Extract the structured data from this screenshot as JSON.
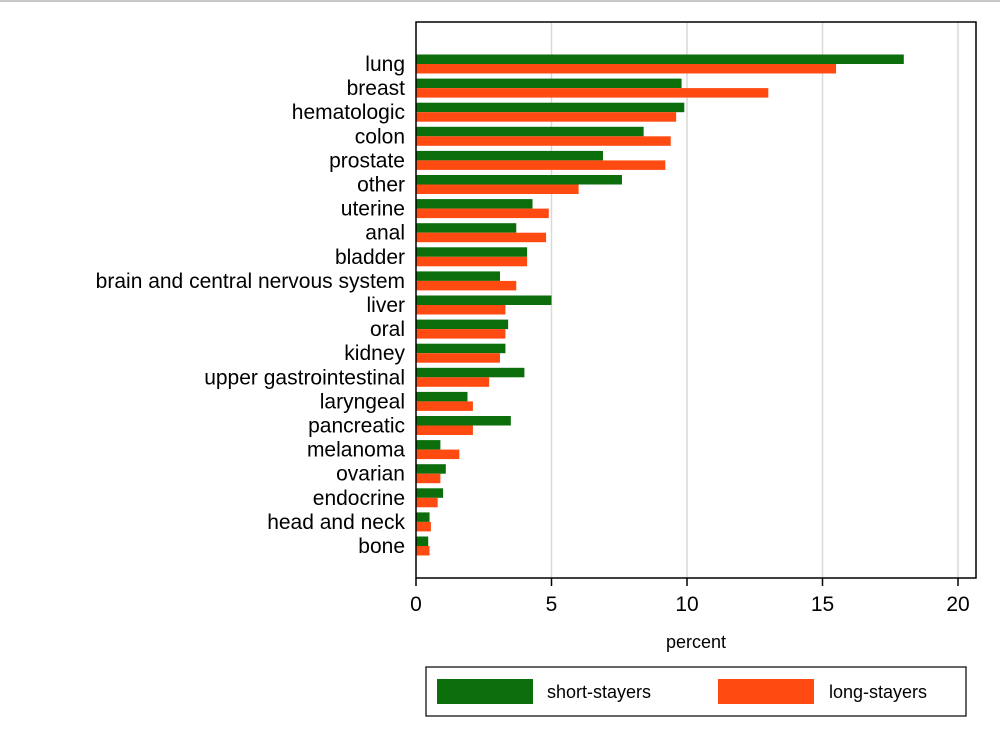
{
  "chart_data": {
    "type": "bar",
    "orientation": "horizontal",
    "categories": [
      "lung",
      "breast",
      "hematologic",
      "colon",
      "prostate",
      "other",
      "uterine",
      "anal",
      "bladder",
      "brain and central nervous system",
      "liver",
      "oral",
      "kidney",
      "upper gastrointestinal",
      "laryngeal",
      "pancreatic",
      "melanoma",
      "ovarian",
      "endocrine",
      "head and neck",
      "bone"
    ],
    "series": [
      {
        "name": "short-stayers",
        "color": "#0b6e0b",
        "values": [
          18.0,
          9.8,
          9.9,
          8.4,
          6.9,
          7.6,
          4.3,
          3.7,
          4.1,
          3.1,
          5.0,
          3.4,
          3.3,
          4.0,
          1.9,
          3.5,
          0.9,
          1.1,
          1.0,
          0.5,
          0.45
        ]
      },
      {
        "name": "long-stayers",
        "color": "#ff4b12",
        "values": [
          15.5,
          13.0,
          9.6,
          9.4,
          9.2,
          6.0,
          4.9,
          4.8,
          4.1,
          3.7,
          3.3,
          3.3,
          3.1,
          2.7,
          2.1,
          2.1,
          1.6,
          0.9,
          0.8,
          0.55,
          0.5
        ]
      }
    ],
    "xlabel": "percent",
    "ylabel": "",
    "title": "",
    "xlim": [
      0,
      20
    ],
    "xticks": [
      0,
      5,
      10,
      15,
      20
    ],
    "grid": true,
    "legend_position": "bottom"
  }
}
